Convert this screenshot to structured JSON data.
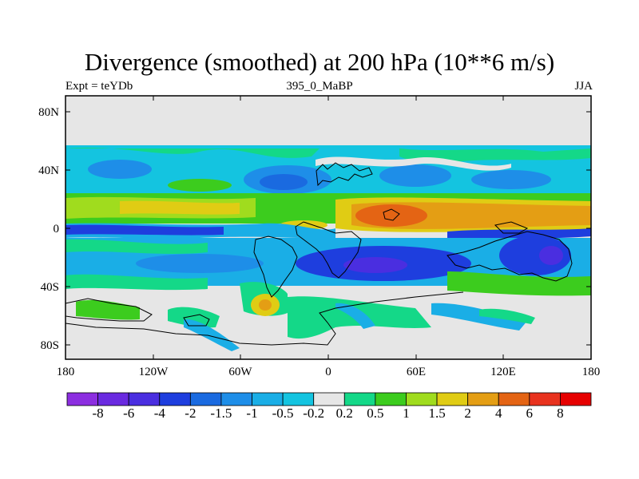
{
  "title": "Divergence (smoothed) at 200 hPa (10**6 m/s)",
  "subtitle_left": "Expt = teYDb",
  "subtitle_center": "395_0_MaBP",
  "subtitle_right": "JJA",
  "map": {
    "projection": "cylindrical equidistant",
    "lon_range": [
      -180,
      180
    ],
    "lat_range": [
      -90,
      90
    ],
    "lat_labels": [
      "80N",
      "40N",
      "0",
      "40S",
      "80S"
    ],
    "lon_labels": [
      "180",
      "120W",
      "60W",
      "0",
      "60E",
      "120E",
      "180"
    ],
    "fields": [
      {
        "feature": "northern mid-latitude band",
        "lat": [
          20,
          55
        ],
        "value_range": [
          -2,
          1
        ]
      },
      {
        "feature": "tropical positive band",
        "lat": [
          0,
          20
        ],
        "value_range": [
          1,
          6
        ]
      },
      {
        "feature": "tropical negative band",
        "lat": [
          -5,
          5
        ],
        "value_range": [
          -4,
          -0.5
        ]
      },
      {
        "feature": "southern hemisphere band",
        "lat": [
          -50,
          -15
        ],
        "value_range": [
          -4,
          2
        ]
      },
      {
        "feature": "polar no-data region",
        "lat": [
          55,
          90
        ],
        "value_range": [
          -0.2,
          0.2
        ]
      }
    ]
  },
  "colorbar": {
    "labels": [
      "-8",
      "-6",
      "-4",
      "-2",
      "-1.5",
      "-1",
      "-0.5",
      "-0.2",
      "0.2",
      "0.5",
      "1",
      "1.5",
      "2",
      "4",
      "6",
      "8"
    ],
    "colors": [
      "#8c2ee0",
      "#6a2ae0",
      "#4a2ee0",
      "#1e3ede",
      "#1a6ae0",
      "#1e8ee8",
      "#1aaee6",
      "#14c4e0",
      "#e6e6e6",
      "#14d888",
      "#3ccc1e",
      "#a0dc1e",
      "#e0cc14",
      "#e49e14",
      "#e46414",
      "#e8321e",
      "#e60000"
    ]
  },
  "palette": {
    "v_n8": "#8c2ee0",
    "v_n6": "#6a2ae0",
    "v_n4": "#4a2ee0",
    "v_n2": "#1e3ede",
    "v_n15": "#1a6ae0",
    "v_n1": "#1e8ee8",
    "v_n05": "#1aaee6",
    "v_n02": "#14c4e0",
    "zero": "#e6e6e6",
    "v_02": "#14d888",
    "v_05": "#3ccc1e",
    "v_1": "#a0dc1e",
    "v_15": "#e0cc14",
    "v_2": "#e49e14",
    "v_4": "#e46414",
    "v_6": "#e8321e"
  }
}
